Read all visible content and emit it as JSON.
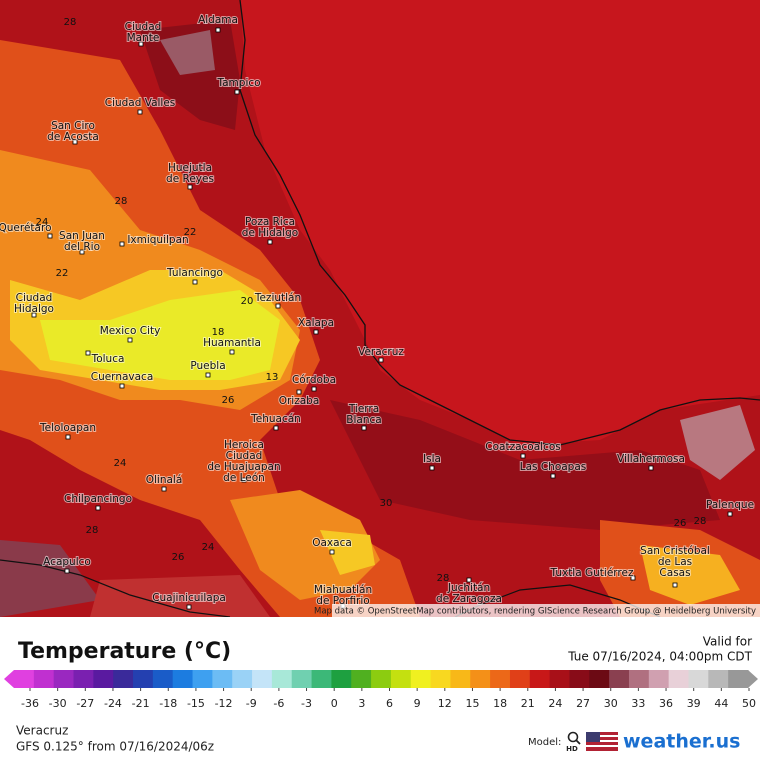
{
  "map": {
    "cities": [
      {
        "lines": [
          "Ciudad",
          "Mante"
        ]
      },
      {
        "lines": [
          "Aldama"
        ]
      },
      {
        "lines": [
          "Tampico"
        ]
      },
      {
        "lines": [
          "Ciudad Valles"
        ]
      },
      {
        "lines": [
          "San Ciro",
          "de Acosta"
        ]
      },
      {
        "lines": [
          "Huejutla",
          "de Reyes"
        ]
      },
      {
        "lines": [
          "Poza Rica",
          "de Hidalgo"
        ]
      },
      {
        "lines": [
          "Querétaro"
        ]
      },
      {
        "lines": [
          "San Juan",
          "del Rio"
        ]
      },
      {
        "lines": [
          "Ixmiquilpan"
        ]
      },
      {
        "lines": [
          "Tulancingo"
        ]
      },
      {
        "lines": [
          "Teziutlán"
        ]
      },
      {
        "lines": [
          "Ciudad",
          "Hidalgo"
        ]
      },
      {
        "lines": [
          "Xalapa"
        ]
      },
      {
        "lines": [
          "Mexico City"
        ]
      },
      {
        "lines": [
          "Huamantla"
        ]
      },
      {
        "lines": [
          "Veracruz"
        ]
      },
      {
        "lines": [
          "Toluca"
        ]
      },
      {
        "lines": [
          "Puebla"
        ]
      },
      {
        "lines": [
          "Cuernavaca"
        ]
      },
      {
        "lines": [
          "Córdoba"
        ]
      },
      {
        "lines": [
          "Orizaba"
        ]
      },
      {
        "lines": [
          "Tierra",
          "Blanca"
        ]
      },
      {
        "lines": [
          "Tehuacán"
        ]
      },
      {
        "lines": [
          "Teloloapan"
        ]
      },
      {
        "lines": [
          "Heroica",
          "Ciudad",
          "de Huajuapan",
          "de León"
        ]
      },
      {
        "lines": [
          "Coatzacoalcos"
        ]
      },
      {
        "lines": [
          "Isla"
        ]
      },
      {
        "lines": [
          "Las Choapas"
        ]
      },
      {
        "lines": [
          "Villahermosa"
        ]
      },
      {
        "lines": [
          "Olinalá"
        ]
      },
      {
        "lines": [
          "Chilpancingo"
        ]
      },
      {
        "lines": [
          "Palenque"
        ]
      },
      {
        "lines": [
          "Oaxaca"
        ]
      },
      {
        "lines": [
          "San Cristóbal",
          "de Las",
          "Casas"
        ]
      },
      {
        "lines": [
          "Acapulco"
        ]
      },
      {
        "lines": [
          "Tuxtla Gutiérrez"
        ]
      },
      {
        "lines": [
          "Juchitán",
          "de Zaragoza"
        ]
      },
      {
        "lines": [
          "Miahuatlán",
          "de Porfirio"
        ]
      },
      {
        "lines": [
          "Cuajinicuilapa"
        ]
      }
    ],
    "contour_labels": [
      "28",
      "24",
      "22",
      "22",
      "20",
      "18",
      "13",
      "26",
      "24",
      "30",
      "28",
      "26",
      "28",
      "26",
      "24",
      "28",
      "28"
    ],
    "attribution": "Map data © OpenStreetMap contributors, rendering GIScience Research Group @ Heidelberg University"
  },
  "legend": {
    "title": "Temperature (°C)",
    "valid_label": "Valid for",
    "valid_time": "Tue 07/16/2024, 04:00pm CDT",
    "ticks": [
      -36,
      -30,
      -27,
      -24,
      -21,
      -18,
      -15,
      -12,
      -9,
      -6,
      -3,
      0,
      3,
      6,
      9,
      12,
      15,
      18,
      21,
      24,
      27,
      30,
      33,
      36,
      39,
      44,
      50
    ],
    "colors": [
      "#e040e0",
      "#c030d0",
      "#9a28c0",
      "#7a20b0",
      "#5a1aa0",
      "#3a2a9a",
      "#2440b0",
      "#1a5cc8",
      "#1c7ce0",
      "#3ea0f0",
      "#6cbcf4",
      "#9ad2f6",
      "#c4e4f8",
      "#a8e8d8",
      "#70d0b0",
      "#3cb878",
      "#1ea040",
      "#50b020",
      "#8ccc10",
      "#c4e010",
      "#f0f020",
      "#f8d820",
      "#f8b818",
      "#f49018",
      "#ec6818",
      "#e04018",
      "#c81818",
      "#a81018",
      "#880c18",
      "#6c0a14",
      "#8a4050",
      "#b07080",
      "#d0a0b0",
      "#e8d0d8",
      "#d8d8d8",
      "#b8b8b8",
      "#989898"
    ],
    "location": "Veracruz",
    "model_run": "GFS 0.125° from  07/16/2024/06z",
    "model_label": "Model:",
    "model_badge": "HD",
    "brand": "weather.us"
  }
}
